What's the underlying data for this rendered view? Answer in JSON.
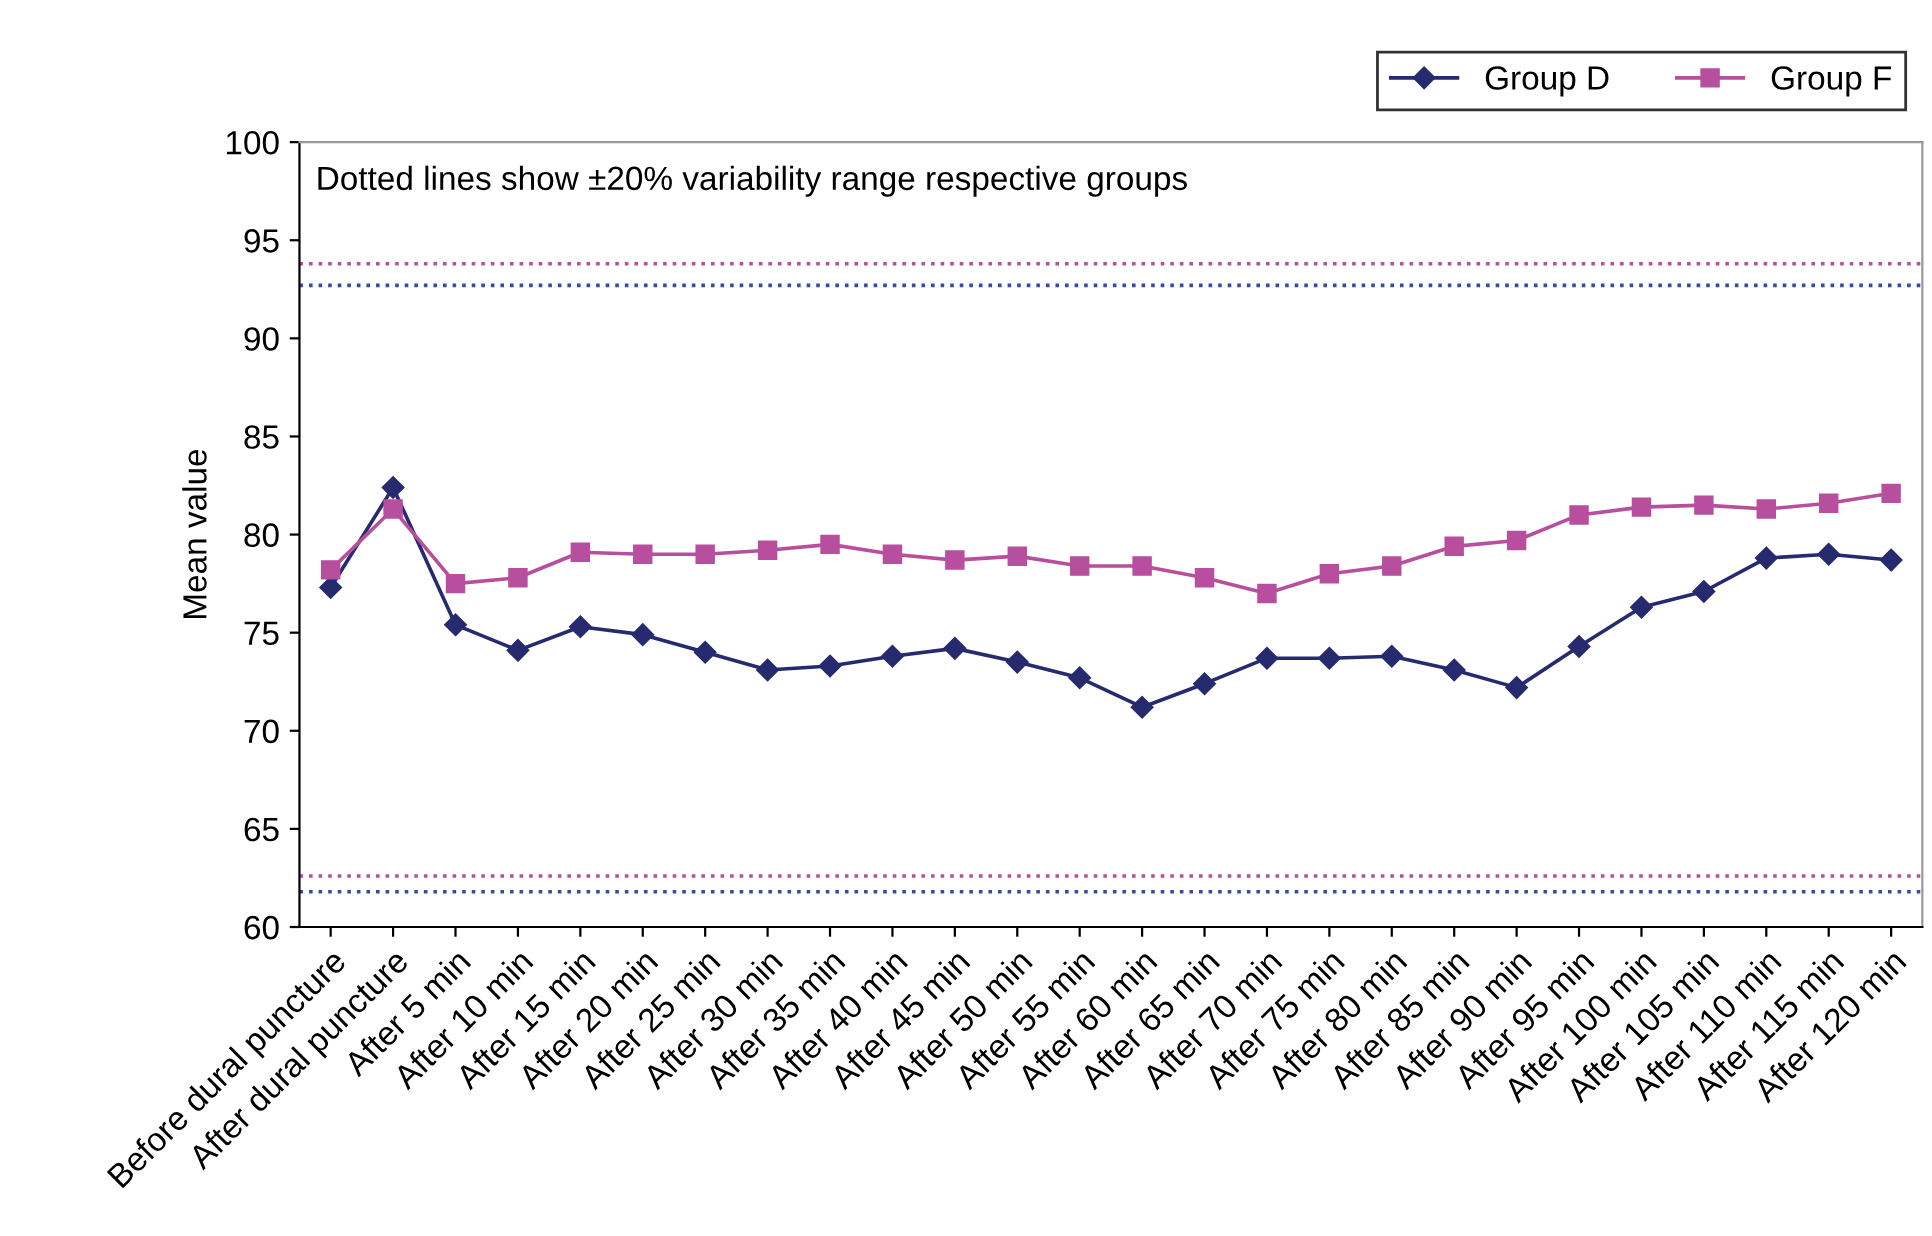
{
  "chart_data": {
    "type": "line",
    "ylabel": "Mean value",
    "categories": [
      "Before dural puncture",
      "After dural puncture",
      "After 5 min",
      "After 10 min",
      "After 15 min",
      "After 20 min",
      "After 25 min",
      "After 30 min",
      "After 35 min",
      "After 40 min",
      "After 45 min",
      "After 50 min",
      "After 55 min",
      "After 60 min",
      "After 65 min",
      "After 70 min",
      "After 75 min",
      "After 80 min",
      "After 85 min",
      "After 90 min",
      "After 95 min",
      "After 100 min",
      "After 105 min",
      "After 110 min",
      "After 115 min",
      "After 120 min"
    ],
    "series": [
      {
        "name": "Group D",
        "color": "#262a6e",
        "marker": "diamond",
        "values": [
          77.3,
          82.4,
          75.4,
          74.1,
          75.3,
          74.9,
          74.0,
          73.1,
          73.3,
          73.8,
          74.2,
          73.5,
          72.7,
          71.2,
          72.4,
          73.7,
          73.7,
          73.8,
          73.1,
          72.2,
          74.3,
          76.3,
          77.1,
          78.8,
          79.0,
          78.7
        ]
      },
      {
        "name": "Group F",
        "color": "#b84f9e",
        "marker": "square",
        "values": [
          78.2,
          81.3,
          77.5,
          77.8,
          79.1,
          79.0,
          79.0,
          79.2,
          79.5,
          79.0,
          78.7,
          78.9,
          78.4,
          78.4,
          77.8,
          77.0,
          78.0,
          78.4,
          79.4,
          79.7,
          81.0,
          81.4,
          81.5,
          81.3,
          81.6,
          82.1
        ]
      }
    ],
    "ylim": [
      60,
      100
    ],
    "yticks": [
      60,
      65,
      70,
      75,
      80,
      85,
      90,
      95,
      100
    ],
    "ref_lines": [
      {
        "axis": "y",
        "value": 93.8,
        "color": "#b84f9e",
        "line_style": "dotted"
      },
      {
        "axis": "y",
        "value": 92.7,
        "color": "#3a4aa0",
        "line_style": "dotted"
      },
      {
        "axis": "y",
        "value": 62.6,
        "color": "#b84f9e",
        "line_style": "dotted"
      },
      {
        "axis": "y",
        "value": 61.8,
        "color": "#3a4aa0",
        "line_style": "dotted"
      }
    ],
    "annotations": [
      "Dotted lines show ±20% variability range respective groups"
    ],
    "grid": false,
    "legend": "top right",
    "line_style": "solid"
  }
}
